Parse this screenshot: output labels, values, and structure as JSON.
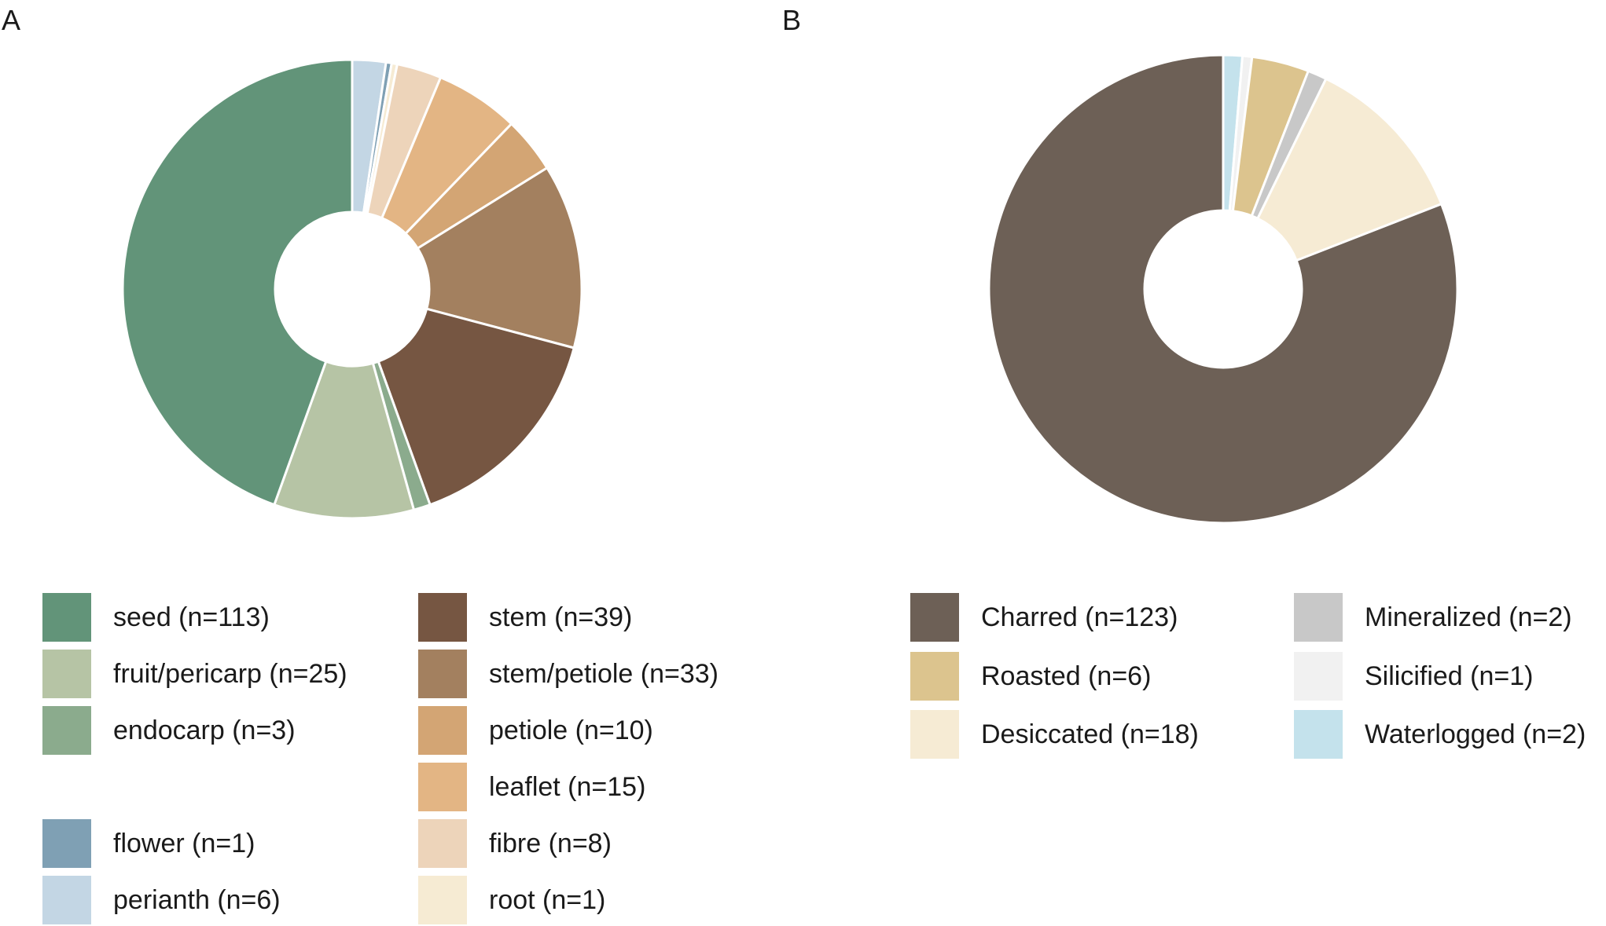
{
  "panels": {
    "a": {
      "letter": "A"
    },
    "b": {
      "letter": "B"
    }
  },
  "chart_data": [
    {
      "type": "pie",
      "panel": "A",
      "donut": true,
      "slices": [
        {
          "label": "perianth (n=6)",
          "value": 6,
          "color": "#c3d6e4"
        },
        {
          "label": "flower (n=1)",
          "value": 1,
          "color": "#7fa0b4"
        },
        {
          "label": "root (n=1)",
          "value": 1,
          "color": "#f6ebd3"
        },
        {
          "label": "fibre (n=8)",
          "value": 8,
          "color": "#edd4ba"
        },
        {
          "label": "leaflet (n=15)",
          "value": 15,
          "color": "#e3b584"
        },
        {
          "label": "petiole (n=10)",
          "value": 10,
          "color": "#d3a574"
        },
        {
          "label": "stem/petiole (n=33)",
          "value": 33,
          "color": "#a3805f"
        },
        {
          "label": "stem (n=39)",
          "value": 39,
          "color": "#765642"
        },
        {
          "label": "endocarp (n=3)",
          "value": 3,
          "color": "#8bab8d"
        },
        {
          "label": "fruit/pericarp (n=25)",
          "value": 25,
          "color": "#b6c4a5"
        },
        {
          "label": "seed (n=113)",
          "value": 113,
          "color": "#629479"
        }
      ],
      "legend": {
        "col1": [
          {
            "label": "seed (n=113)",
            "color": "#629479"
          },
          {
            "label": "fruit/pericarp (n=25)",
            "color": "#b6c4a5"
          },
          {
            "label": "endocarp (n=3)",
            "color": "#8bab8d"
          },
          {
            "label": "flower (n=1)",
            "color": "#7fa0b4"
          },
          {
            "label": "perianth (n=6)",
            "color": "#c3d6e4"
          }
        ],
        "col2": [
          {
            "label": "stem (n=39)",
            "color": "#765642"
          },
          {
            "label": "stem/petiole (n=33)",
            "color": "#a3805f"
          },
          {
            "label": "petiole (n=10)",
            "color": "#d3a574"
          },
          {
            "label": "leaflet (n=15)",
            "color": "#e3b584"
          },
          {
            "label": "fibre (n=8)",
            "color": "#edd4ba"
          },
          {
            "label": "root (n=1)",
            "color": "#f6ebd3"
          }
        ]
      }
    },
    {
      "type": "pie",
      "panel": "B",
      "donut": true,
      "slices": [
        {
          "label": "Waterlogged (n=2)",
          "value": 2,
          "color": "#c4e2ec"
        },
        {
          "label": "Silicified (n=1)",
          "value": 1,
          "color": "#f1f1f1"
        },
        {
          "label": "Roasted (n=6)",
          "value": 6,
          "color": "#dcc48e"
        },
        {
          "label": "Mineralized (n=2)",
          "value": 2,
          "color": "#c8c8c8"
        },
        {
          "label": "Desiccated (n=18)",
          "value": 18,
          "color": "#f6ebd4"
        },
        {
          "label": "Charred (n=123)",
          "value": 123,
          "color": "#6d6056"
        }
      ],
      "legend": {
        "col1": [
          {
            "label": "Charred (n=123)",
            "color": "#6d6056"
          },
          {
            "label": "Roasted (n=6)",
            "color": "#dcc48e"
          },
          {
            "label": "Desiccated (n=18)",
            "color": "#f6ebd4"
          }
        ],
        "col2": [
          {
            "label": "Mineralized (n=2)",
            "color": "#c8c8c8"
          },
          {
            "label": "Silicified (n=1)",
            "color": "#f1f1f1"
          },
          {
            "label": "Waterlogged (n=2)",
            "color": "#c4e2ec"
          }
        ]
      }
    }
  ]
}
